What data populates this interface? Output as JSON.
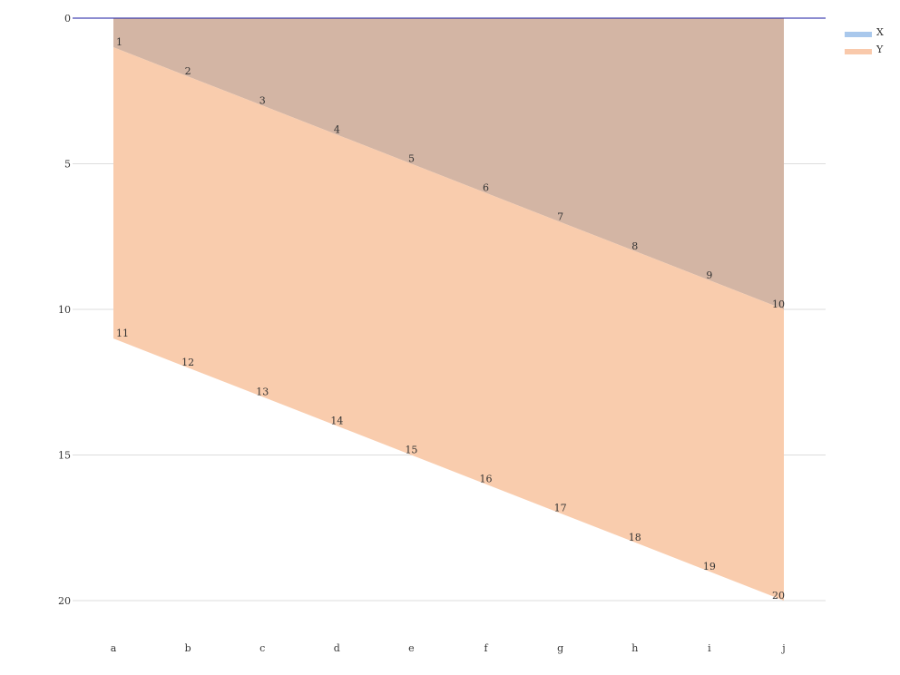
{
  "chart_data": {
    "type": "area",
    "stacked": true,
    "categories": [
      "a",
      "b",
      "c",
      "d",
      "e",
      "f",
      "g",
      "h",
      "i",
      "j"
    ],
    "series": [
      {
        "name": "X",
        "values": [
          1,
          2,
          3,
          4,
          5,
          6,
          7,
          8,
          9,
          10
        ],
        "color": "#a9c8ec",
        "fill": "#d3b5a4"
      },
      {
        "name": "Y",
        "values": [
          10,
          10,
          10,
          10,
          10,
          10,
          10,
          10,
          10,
          10
        ],
        "color": "#f9c9ab",
        "fill": "#f9ccad"
      }
    ],
    "data_labels": {
      "X": [
        "1",
        "2",
        "3",
        "4",
        "5",
        "6",
        "7",
        "8",
        "9",
        "10"
      ],
      "Y": [
        "11",
        "12",
        "13",
        "14",
        "15",
        "16",
        "17",
        "18",
        "19",
        "20"
      ]
    },
    "y_ticks": [
      "0",
      "5",
      "10",
      "15",
      "20"
    ],
    "ylim": [
      0,
      20
    ],
    "y_axis_inverted": true,
    "grid": true,
    "legend_position": "top-right",
    "axis_line_color": "#1a1aa0"
  }
}
